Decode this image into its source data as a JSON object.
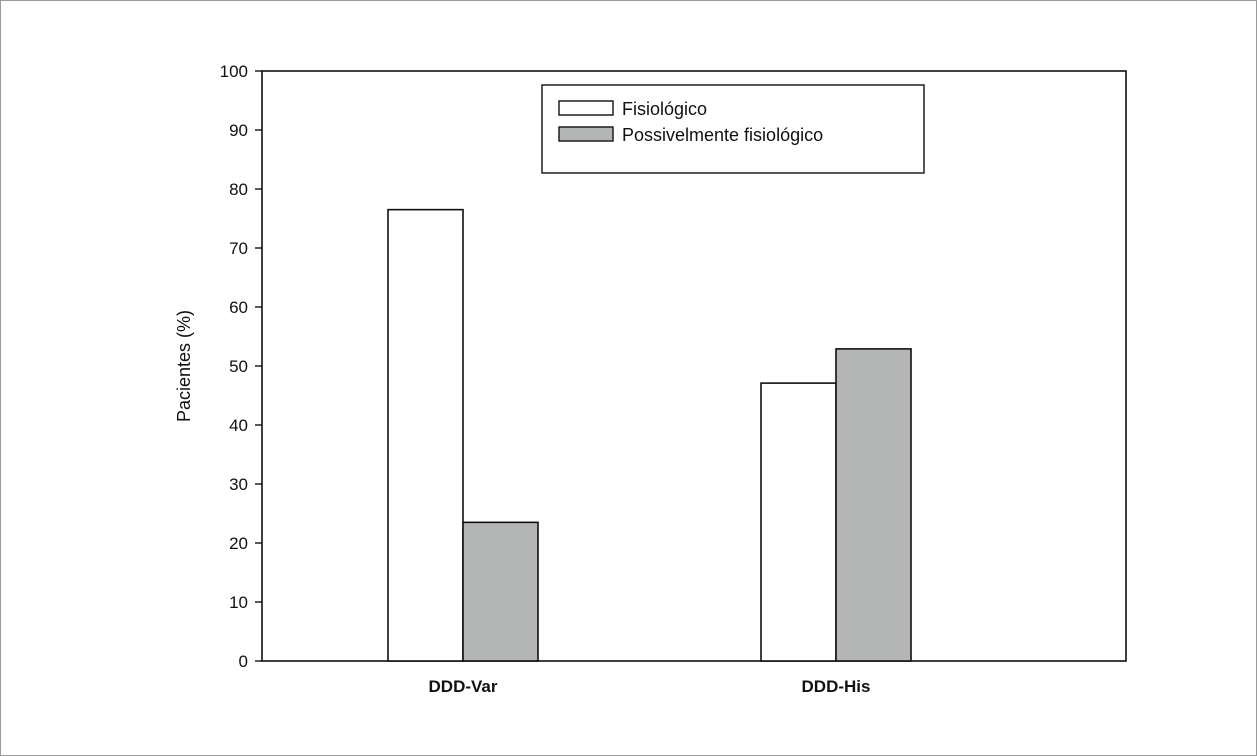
{
  "chart_data": {
    "type": "bar",
    "categories": [
      "DDD-Var",
      "DDD-His"
    ],
    "series": [
      {
        "name": "Fisiológico",
        "values": [
          76.5,
          47.1
        ],
        "color": "#ffffff"
      },
      {
        "name": "Possivelmente fisiológico",
        "values": [
          23.5,
          52.9
        ],
        "color": "#b4b6b6"
      }
    ],
    "title": "",
    "xlabel": "",
    "ylabel": "Pacientes (%)",
    "ylim": [
      0,
      100
    ],
    "yticks": [
      "0",
      "10",
      "20",
      "30",
      "40",
      "50",
      "60",
      "70",
      "80",
      "90",
      "100"
    ],
    "grid": false,
    "legend_position": "top-right",
    "bar_outline_color": "#111111"
  }
}
